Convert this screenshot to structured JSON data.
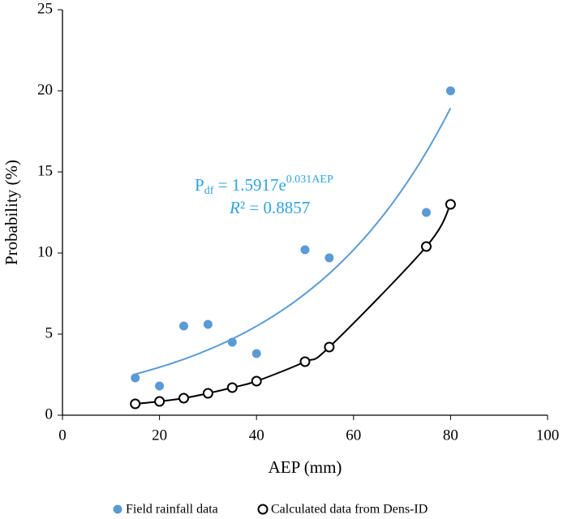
{
  "chart_data": {
    "type": "scatter",
    "x_label": "AEP (mm)",
    "y_label": "Probability (%)",
    "xlim": [
      0,
      100
    ],
    "xticks": [
      0,
      20,
      40,
      60,
      80,
      100
    ],
    "ylim": [
      0,
      25
    ],
    "yticks": [
      0,
      5,
      10,
      15,
      20,
      25
    ],
    "series": [
      {
        "name": "Field rainfall data",
        "color": "#5b9bd5",
        "marker": "filled",
        "trendline": "exponential",
        "x": [
          15,
          20,
          25,
          30,
          35,
          40,
          50,
          55,
          75,
          80
        ],
        "values": [
          2.3,
          1.8,
          5.5,
          5.6,
          4.5,
          3.8,
          10.2,
          9.7,
          12.5,
          20
        ]
      },
      {
        "name": "Calculated data from Dens-ID",
        "color": "#000000",
        "marker": "open",
        "line": "smooth",
        "x": [
          15,
          20,
          25,
          30,
          35,
          40,
          50,
          55,
          75,
          80
        ],
        "values": [
          0.7,
          0.85,
          1.05,
          1.35,
          1.7,
          2.1,
          3.3,
          4.2,
          10.4,
          13
        ]
      }
    ],
    "equation": {
      "base": "P",
      "subscript": "df",
      "text": " = 1.5917e",
      "superscript": "0.031AEP",
      "color": "#2ea3e0"
    },
    "r_squared": {
      "symbol": "R",
      "text": "² = 0.8857",
      "color": "#2ea3e0"
    }
  }
}
